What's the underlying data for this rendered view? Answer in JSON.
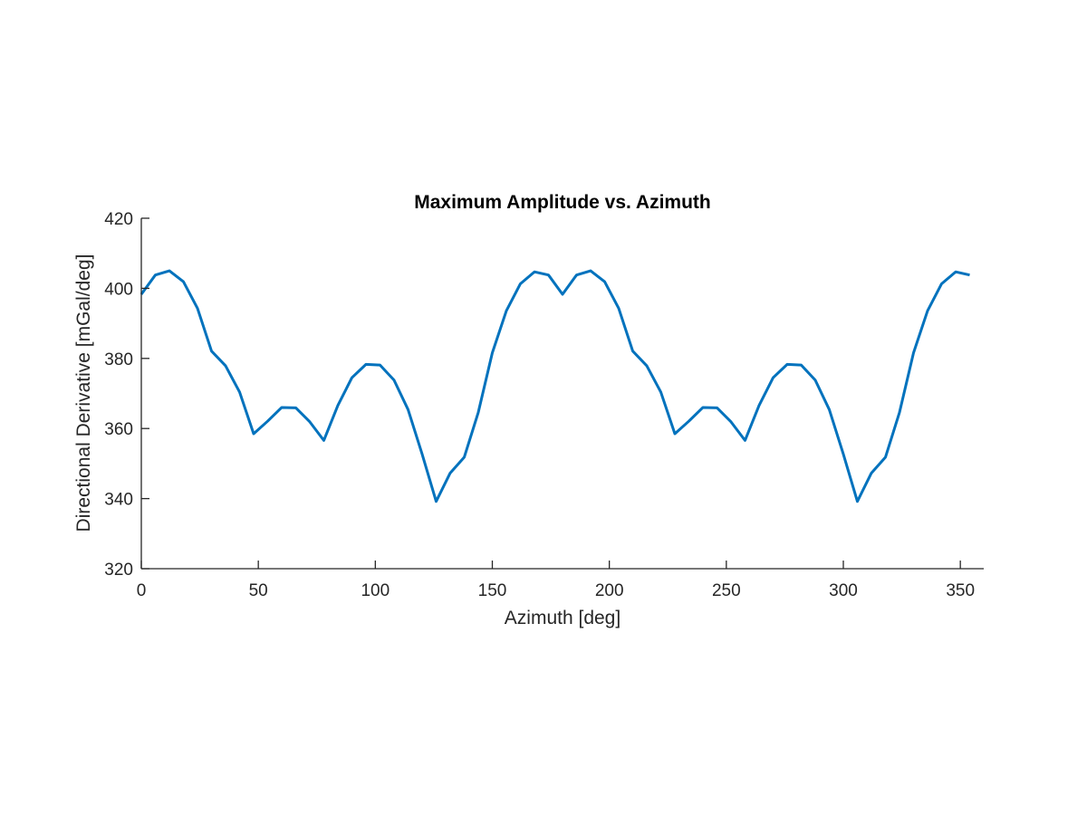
{
  "chart_data": {
    "type": "line",
    "title": "Maximum Amplitude vs. Azimuth",
    "xlabel": "Azimuth [deg]",
    "ylabel": "Directional Derivative [mGal/deg]",
    "xlim": [
      0,
      360
    ],
    "ylim": [
      320,
      420
    ],
    "xticks": [
      0,
      50,
      100,
      150,
      200,
      250,
      300,
      350
    ],
    "yticks": [
      320,
      340,
      360,
      380,
      400,
      420
    ],
    "grid": false,
    "line_color": "#0072BD",
    "series": [
      {
        "x": [
          0,
          6,
          12,
          18,
          24,
          30,
          36,
          42,
          48,
          54,
          60,
          66,
          72,
          78,
          84,
          90,
          96,
          102,
          108,
          114,
          120,
          126,
          132,
          138,
          144,
          150,
          156,
          162,
          168,
          174,
          180,
          186,
          192,
          198,
          204,
          210,
          216,
          222,
          228,
          234,
          240,
          246,
          252,
          258,
          264,
          270,
          276,
          282,
          288,
          294,
          300,
          306,
          312,
          318,
          324,
          330,
          336,
          342,
          348,
          354
        ],
        "y": [
          398.3,
          403.8,
          405.0,
          401.9,
          394.3,
          382.1,
          377.9,
          370.4,
          358.5,
          362.1,
          366.0,
          365.9,
          361.9,
          356.6,
          366.6,
          374.5,
          378.3,
          378.1,
          373.8,
          365.4,
          352.7,
          339.2,
          347.3,
          351.8,
          364.6,
          381.6,
          393.6,
          401.3,
          404.7,
          403.8,
          398.3,
          403.8,
          405.0,
          401.9,
          394.3,
          382.1,
          377.9,
          370.4,
          358.5,
          362.1,
          366.0,
          365.9,
          361.9,
          356.6,
          366.6,
          374.5,
          378.3,
          378.1,
          373.8,
          365.4,
          352.7,
          339.2,
          347.3,
          351.8,
          364.6,
          381.6,
          393.6,
          401.3,
          404.7,
          403.8
        ]
      }
    ]
  }
}
